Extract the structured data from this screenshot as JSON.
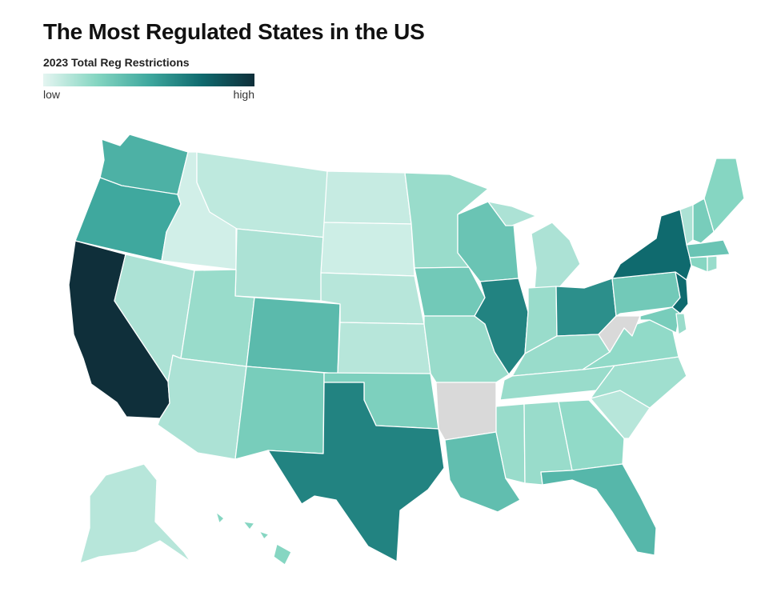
{
  "title": "The Most Regulated States in the US",
  "legend": {
    "title": "2023 Total Reg Restrictions",
    "low_label": "low",
    "high_label": "high",
    "gradient": [
      "#e4f5f1",
      "#86d6c2",
      "#3fa89e",
      "#0f6a6e",
      "#0f2f3a"
    ]
  },
  "colors": {
    "no_data": "#d9d9d9",
    "border": "#ffffff"
  },
  "states": [
    {
      "id": "WA",
      "level": 0.45
    },
    {
      "id": "OR",
      "level": 0.5
    },
    {
      "id": "CA",
      "level": 1.0
    },
    {
      "id": "ID",
      "level": 0.05
    },
    {
      "id": "NV",
      "level": 0.15
    },
    {
      "id": "MT",
      "level": 0.1
    },
    {
      "id": "WY",
      "level": 0.15
    },
    {
      "id": "UT",
      "level": 0.2
    },
    {
      "id": "AZ",
      "level": 0.15
    },
    {
      "id": "CO",
      "level": 0.4
    },
    {
      "id": "NM",
      "level": 0.3
    },
    {
      "id": "ND",
      "level": 0.08
    },
    {
      "id": "SD",
      "level": 0.06
    },
    {
      "id": "NE",
      "level": 0.12
    },
    {
      "id": "KS",
      "level": 0.12
    },
    {
      "id": "OK",
      "level": 0.28
    },
    {
      "id": "TX",
      "level": 0.65
    },
    {
      "id": "MN",
      "level": 0.2
    },
    {
      "id": "IA",
      "level": 0.32
    },
    {
      "id": "MO",
      "level": 0.2
    },
    {
      "id": "AR",
      "level": null
    },
    {
      "id": "LA",
      "level": 0.38
    },
    {
      "id": "WI",
      "level": 0.35
    },
    {
      "id": "IL",
      "level": 0.65
    },
    {
      "id": "MI",
      "level": 0.15
    },
    {
      "id": "IN",
      "level": 0.2
    },
    {
      "id": "OH",
      "level": 0.6
    },
    {
      "id": "KY",
      "level": 0.2
    },
    {
      "id": "TN",
      "level": 0.2
    },
    {
      "id": "MS",
      "level": 0.2
    },
    {
      "id": "AL",
      "level": 0.2
    },
    {
      "id": "GA",
      "level": 0.22
    },
    {
      "id": "FL",
      "level": 0.42
    },
    {
      "id": "SC",
      "level": 0.12
    },
    {
      "id": "NC",
      "level": 0.18
    },
    {
      "id": "VA",
      "level": 0.22
    },
    {
      "id": "WV",
      "level": null
    },
    {
      "id": "PA",
      "level": 0.32
    },
    {
      "id": "NY",
      "level": 0.75
    },
    {
      "id": "NJ",
      "level": 0.75
    },
    {
      "id": "ME",
      "level": 0.25
    },
    {
      "id": "VT",
      "level": 0.15
    },
    {
      "id": "NH",
      "level": 0.3
    },
    {
      "id": "MA",
      "level": 0.35
    },
    {
      "id": "CT",
      "level": 0.25
    },
    {
      "id": "RI",
      "level": 0.2
    },
    {
      "id": "MD",
      "level": 0.3
    },
    {
      "id": "DE",
      "level": 0.2
    },
    {
      "id": "AK",
      "level": 0.12
    },
    {
      "id": "HI",
      "level": 0.25
    }
  ]
}
